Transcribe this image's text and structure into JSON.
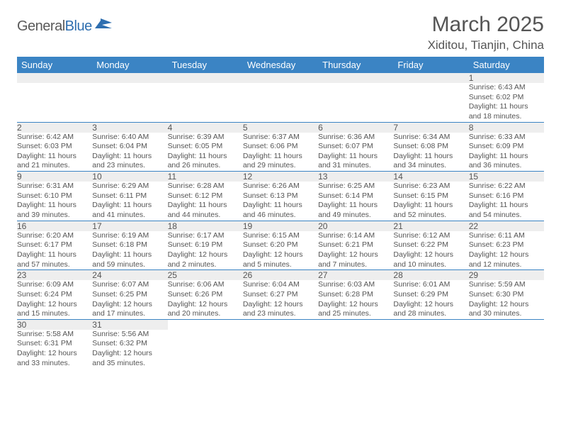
{
  "brand": {
    "part1": "General",
    "part2": "Blue"
  },
  "title": "March 2025",
  "location": "Xiditou, Tianjin, China",
  "colors": {
    "header_bg": "#3b84c4",
    "header_text": "#ffffff",
    "daynum_bg": "#eeeeee",
    "border": "#3b84c4",
    "text": "#555555",
    "logo_blue": "#2f6fb0"
  },
  "weekdays": [
    "Sunday",
    "Monday",
    "Tuesday",
    "Wednesday",
    "Thursday",
    "Friday",
    "Saturday"
  ],
  "weeks": [
    [
      null,
      null,
      null,
      null,
      null,
      null,
      {
        "d": "1",
        "sr": "Sunrise: 6:43 AM",
        "ss": "Sunset: 6:02 PM",
        "dl1": "Daylight: 11 hours",
        "dl2": "and 18 minutes."
      }
    ],
    [
      {
        "d": "2",
        "sr": "Sunrise: 6:42 AM",
        "ss": "Sunset: 6:03 PM",
        "dl1": "Daylight: 11 hours",
        "dl2": "and 21 minutes."
      },
      {
        "d": "3",
        "sr": "Sunrise: 6:40 AM",
        "ss": "Sunset: 6:04 PM",
        "dl1": "Daylight: 11 hours",
        "dl2": "and 23 minutes."
      },
      {
        "d": "4",
        "sr": "Sunrise: 6:39 AM",
        "ss": "Sunset: 6:05 PM",
        "dl1": "Daylight: 11 hours",
        "dl2": "and 26 minutes."
      },
      {
        "d": "5",
        "sr": "Sunrise: 6:37 AM",
        "ss": "Sunset: 6:06 PM",
        "dl1": "Daylight: 11 hours",
        "dl2": "and 29 minutes."
      },
      {
        "d": "6",
        "sr": "Sunrise: 6:36 AM",
        "ss": "Sunset: 6:07 PM",
        "dl1": "Daylight: 11 hours",
        "dl2": "and 31 minutes."
      },
      {
        "d": "7",
        "sr": "Sunrise: 6:34 AM",
        "ss": "Sunset: 6:08 PM",
        "dl1": "Daylight: 11 hours",
        "dl2": "and 34 minutes."
      },
      {
        "d": "8",
        "sr": "Sunrise: 6:33 AM",
        "ss": "Sunset: 6:09 PM",
        "dl1": "Daylight: 11 hours",
        "dl2": "and 36 minutes."
      }
    ],
    [
      {
        "d": "9",
        "sr": "Sunrise: 6:31 AM",
        "ss": "Sunset: 6:10 PM",
        "dl1": "Daylight: 11 hours",
        "dl2": "and 39 minutes."
      },
      {
        "d": "10",
        "sr": "Sunrise: 6:29 AM",
        "ss": "Sunset: 6:11 PM",
        "dl1": "Daylight: 11 hours",
        "dl2": "and 41 minutes."
      },
      {
        "d": "11",
        "sr": "Sunrise: 6:28 AM",
        "ss": "Sunset: 6:12 PM",
        "dl1": "Daylight: 11 hours",
        "dl2": "and 44 minutes."
      },
      {
        "d": "12",
        "sr": "Sunrise: 6:26 AM",
        "ss": "Sunset: 6:13 PM",
        "dl1": "Daylight: 11 hours",
        "dl2": "and 46 minutes."
      },
      {
        "d": "13",
        "sr": "Sunrise: 6:25 AM",
        "ss": "Sunset: 6:14 PM",
        "dl1": "Daylight: 11 hours",
        "dl2": "and 49 minutes."
      },
      {
        "d": "14",
        "sr": "Sunrise: 6:23 AM",
        "ss": "Sunset: 6:15 PM",
        "dl1": "Daylight: 11 hours",
        "dl2": "and 52 minutes."
      },
      {
        "d": "15",
        "sr": "Sunrise: 6:22 AM",
        "ss": "Sunset: 6:16 PM",
        "dl1": "Daylight: 11 hours",
        "dl2": "and 54 minutes."
      }
    ],
    [
      {
        "d": "16",
        "sr": "Sunrise: 6:20 AM",
        "ss": "Sunset: 6:17 PM",
        "dl1": "Daylight: 11 hours",
        "dl2": "and 57 minutes."
      },
      {
        "d": "17",
        "sr": "Sunrise: 6:19 AM",
        "ss": "Sunset: 6:18 PM",
        "dl1": "Daylight: 11 hours",
        "dl2": "and 59 minutes."
      },
      {
        "d": "18",
        "sr": "Sunrise: 6:17 AM",
        "ss": "Sunset: 6:19 PM",
        "dl1": "Daylight: 12 hours",
        "dl2": "and 2 minutes."
      },
      {
        "d": "19",
        "sr": "Sunrise: 6:15 AM",
        "ss": "Sunset: 6:20 PM",
        "dl1": "Daylight: 12 hours",
        "dl2": "and 5 minutes."
      },
      {
        "d": "20",
        "sr": "Sunrise: 6:14 AM",
        "ss": "Sunset: 6:21 PM",
        "dl1": "Daylight: 12 hours",
        "dl2": "and 7 minutes."
      },
      {
        "d": "21",
        "sr": "Sunrise: 6:12 AM",
        "ss": "Sunset: 6:22 PM",
        "dl1": "Daylight: 12 hours",
        "dl2": "and 10 minutes."
      },
      {
        "d": "22",
        "sr": "Sunrise: 6:11 AM",
        "ss": "Sunset: 6:23 PM",
        "dl1": "Daylight: 12 hours",
        "dl2": "and 12 minutes."
      }
    ],
    [
      {
        "d": "23",
        "sr": "Sunrise: 6:09 AM",
        "ss": "Sunset: 6:24 PM",
        "dl1": "Daylight: 12 hours",
        "dl2": "and 15 minutes."
      },
      {
        "d": "24",
        "sr": "Sunrise: 6:07 AM",
        "ss": "Sunset: 6:25 PM",
        "dl1": "Daylight: 12 hours",
        "dl2": "and 17 minutes."
      },
      {
        "d": "25",
        "sr": "Sunrise: 6:06 AM",
        "ss": "Sunset: 6:26 PM",
        "dl1": "Daylight: 12 hours",
        "dl2": "and 20 minutes."
      },
      {
        "d": "26",
        "sr": "Sunrise: 6:04 AM",
        "ss": "Sunset: 6:27 PM",
        "dl1": "Daylight: 12 hours",
        "dl2": "and 23 minutes."
      },
      {
        "d": "27",
        "sr": "Sunrise: 6:03 AM",
        "ss": "Sunset: 6:28 PM",
        "dl1": "Daylight: 12 hours",
        "dl2": "and 25 minutes."
      },
      {
        "d": "28",
        "sr": "Sunrise: 6:01 AM",
        "ss": "Sunset: 6:29 PM",
        "dl1": "Daylight: 12 hours",
        "dl2": "and 28 minutes."
      },
      {
        "d": "29",
        "sr": "Sunrise: 5:59 AM",
        "ss": "Sunset: 6:30 PM",
        "dl1": "Daylight: 12 hours",
        "dl2": "and 30 minutes."
      }
    ],
    [
      {
        "d": "30",
        "sr": "Sunrise: 5:58 AM",
        "ss": "Sunset: 6:31 PM",
        "dl1": "Daylight: 12 hours",
        "dl2": "and 33 minutes."
      },
      {
        "d": "31",
        "sr": "Sunrise: 5:56 AM",
        "ss": "Sunset: 6:32 PM",
        "dl1": "Daylight: 12 hours",
        "dl2": "and 35 minutes."
      },
      null,
      null,
      null,
      null,
      null
    ]
  ]
}
